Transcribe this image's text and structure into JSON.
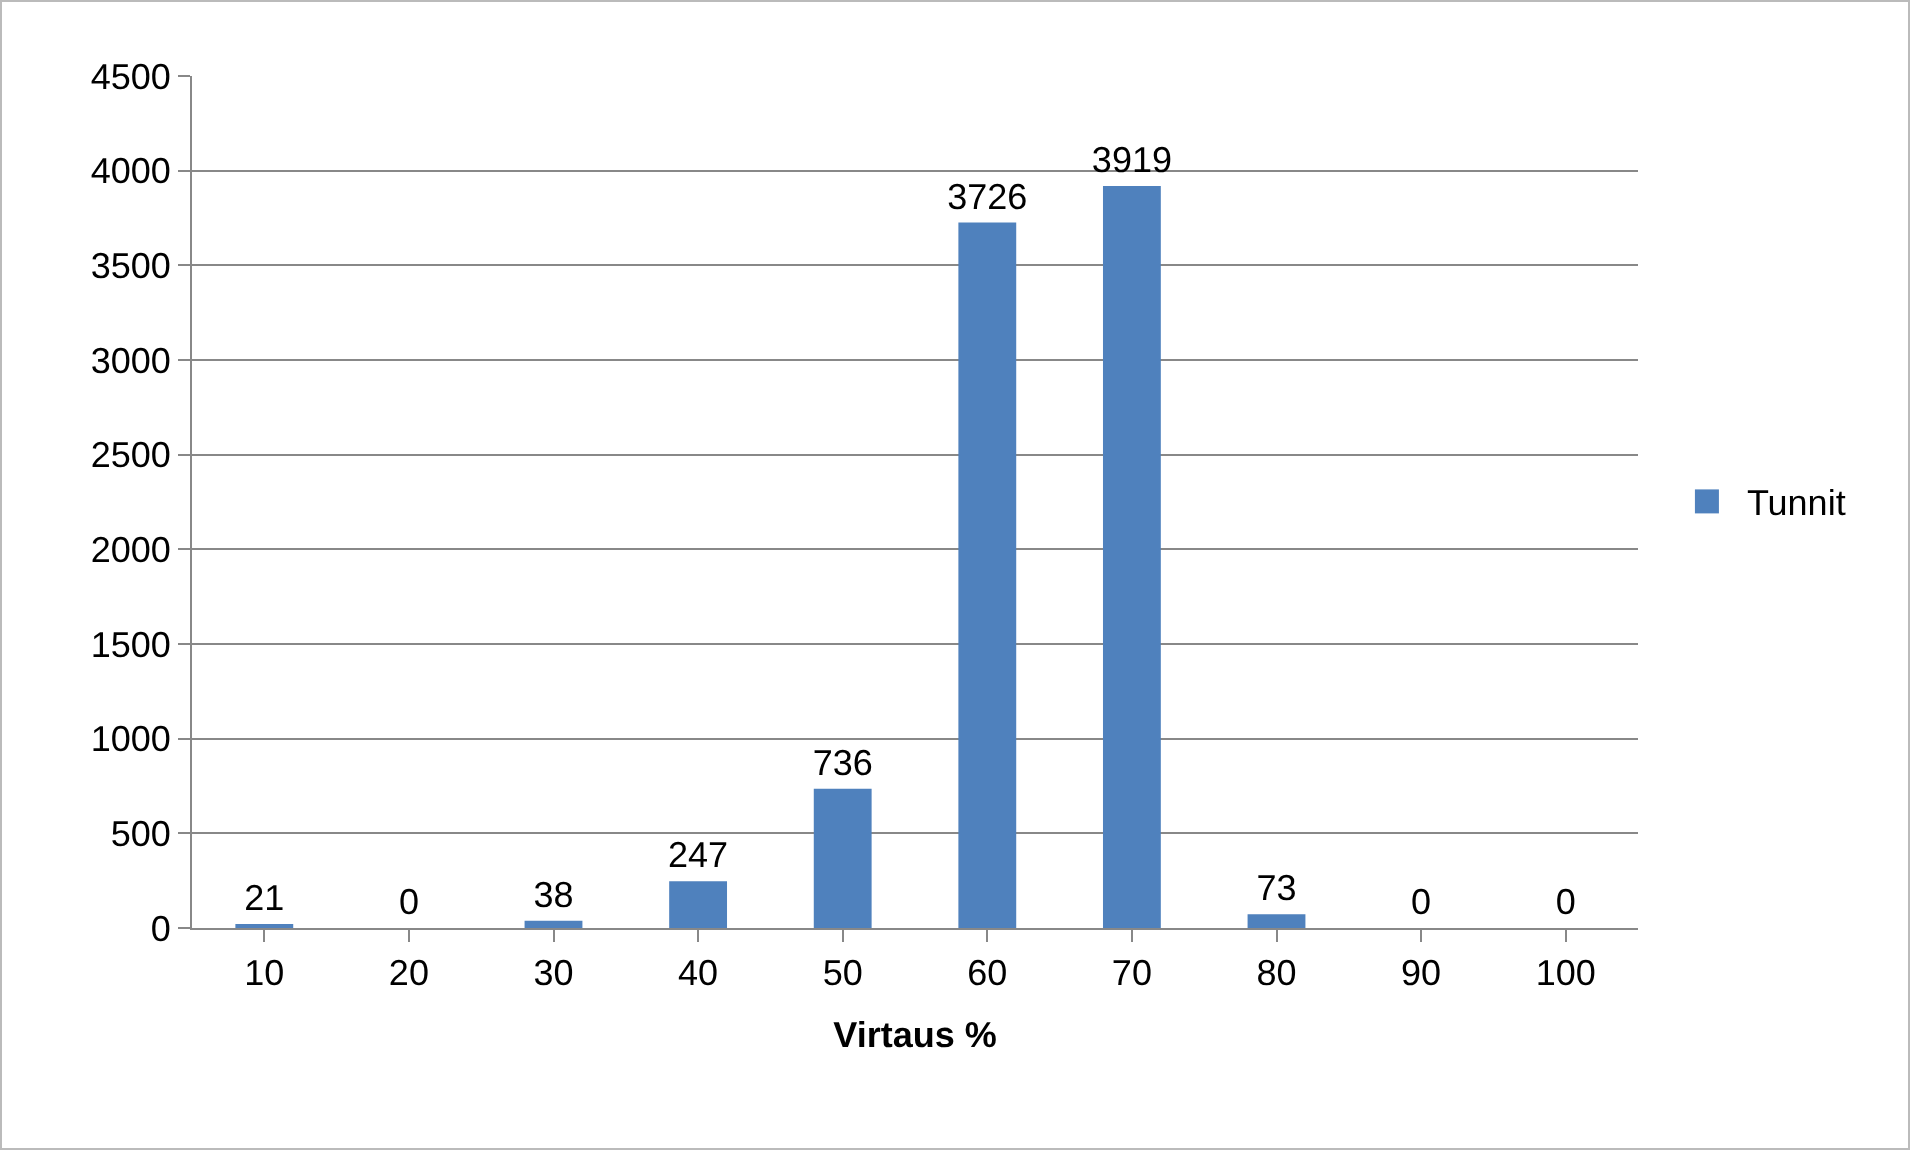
{
  "chart_data": {
    "type": "bar",
    "xlabel": "Virtaus %",
    "categories": [
      "10",
      "20",
      "30",
      "40",
      "50",
      "60",
      "70",
      "80",
      "90",
      "100"
    ],
    "series": [
      {
        "name": "Tunnit",
        "color": "#4f81bd",
        "values": [
          21,
          0,
          38,
          247,
          736,
          3726,
          3919,
          73,
          0,
          0
        ]
      }
    ],
    "ylim": [
      0,
      4500
    ],
    "yticks": [
      0,
      500,
      1000,
      1500,
      2000,
      2500,
      3000,
      3500,
      4000,
      4500
    ],
    "grid": "y",
    "legend": "right",
    "data_labels": true
  }
}
